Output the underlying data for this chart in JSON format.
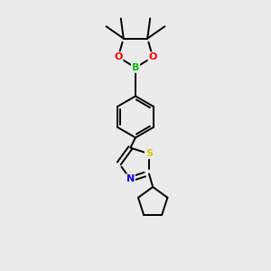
{
  "background_color": "#ebebeb",
  "bond_color": "#000000",
  "atom_colors": {
    "B": "#00bb00",
    "O": "#ff0000",
    "N": "#0000ee",
    "S": "#cccc00",
    "C": "#000000"
  },
  "figsize": [
    3.0,
    3.0
  ],
  "dpi": 100
}
